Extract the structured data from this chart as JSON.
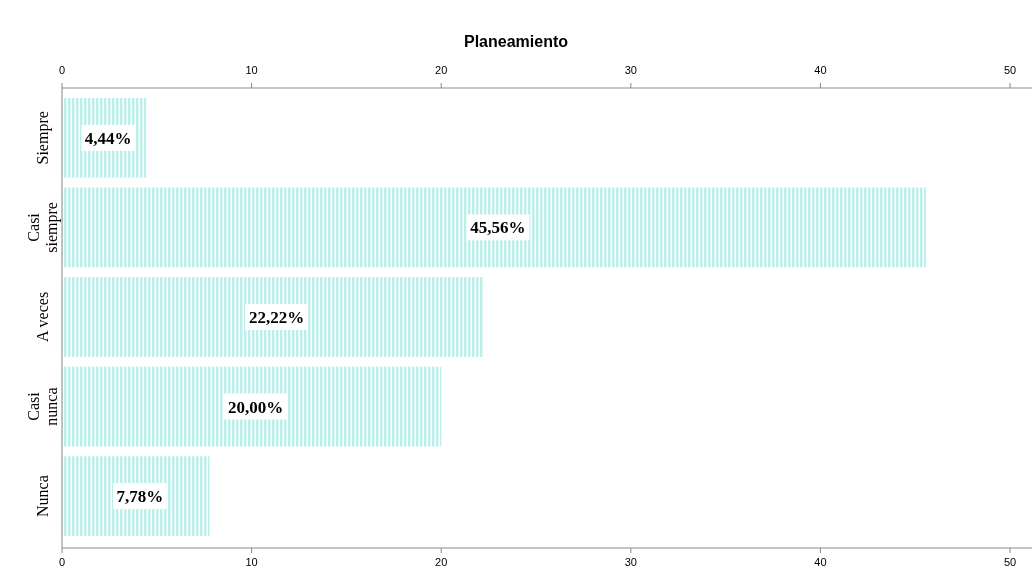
{
  "chart_data": {
    "type": "bar",
    "orientation": "horizontal",
    "title": "Planeamiento",
    "categories": [
      "Siempre",
      "Casi siempre",
      "A veces",
      "Casi nunca",
      "Nunca"
    ],
    "values": [
      4.44,
      45.56,
      22.22,
      20.0,
      7.78
    ],
    "value_labels": [
      "4,44%",
      "45,56%",
      "22,22%",
      "20,00%",
      "7,78%"
    ],
    "color": "#bdeeea",
    "xlim": [
      0,
      51
    ],
    "xticks": [
      0,
      10,
      20,
      30,
      40,
      50
    ],
    "x2lim": [
      0,
      51
    ],
    "x2ticks": [
      0,
      10,
      20,
      30,
      40,
      50
    ],
    "grid": false
  }
}
